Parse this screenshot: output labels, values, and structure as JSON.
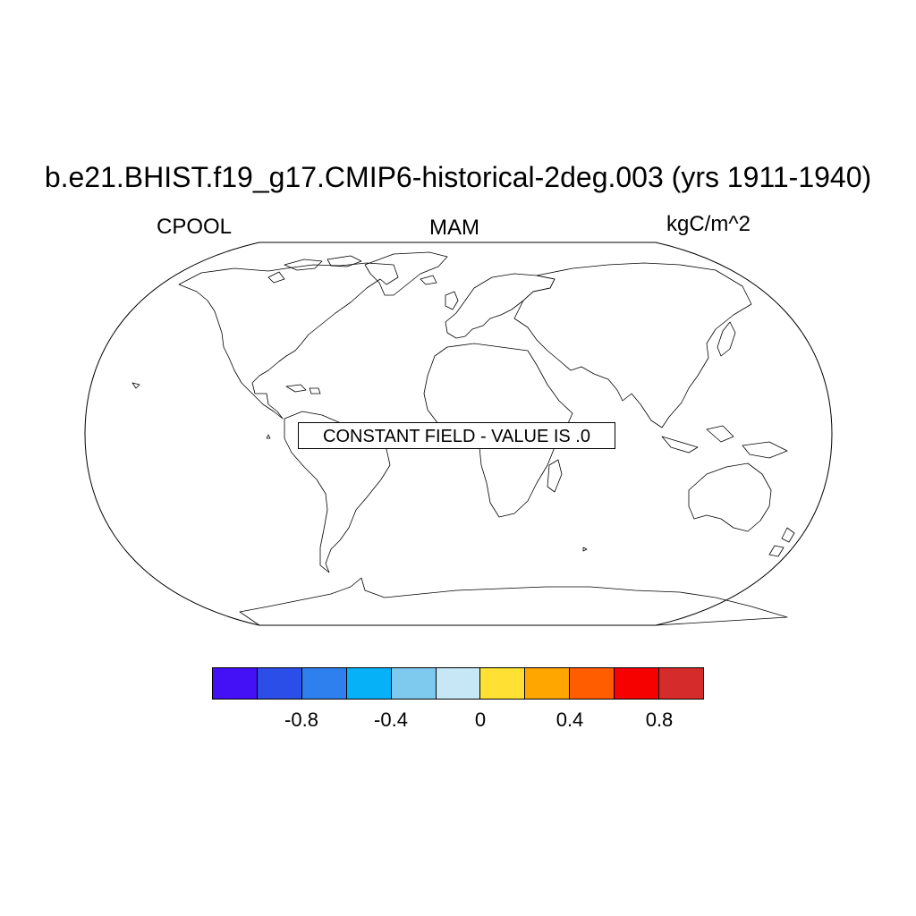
{
  "title": "b.e21.BHIST.f19_g17.CMIP6-historical-2deg.003 (yrs 1911-1940)",
  "left_label": "CPOOL",
  "center_label": "MAM",
  "right_label": "kgC/m^2",
  "projection": "robinson",
  "field_message": "CONSTANT FIELD - VALUE IS .0",
  "colorbar": {
    "colors": [
      "#4410f5",
      "#2b4de8",
      "#2d80ee",
      "#07b1f7",
      "#7ecaef",
      "#c6e8f6",
      "#ffe033",
      "#ffa600",
      "#ff5d00",
      "#f70000",
      "#d62b2b"
    ],
    "tick_labels": [
      "-0.8",
      "-0.4",
      "0",
      "0.4",
      "0.8"
    ]
  }
}
